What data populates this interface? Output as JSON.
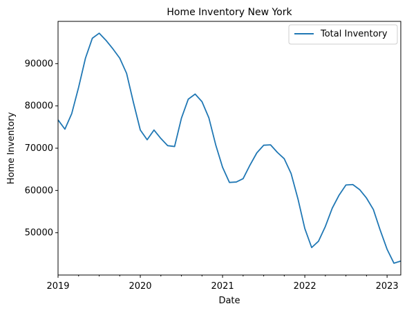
{
  "chart_data": {
    "type": "line",
    "title": "Home Inventory New York",
    "xlabel": "Date",
    "ylabel": "Home Inventory",
    "legend_position": "top-right",
    "grid": false,
    "x_tick_labels": [
      "2019",
      "2020",
      "2021",
      "2022",
      "2023"
    ],
    "y_tick_labels": [
      "50000",
      "60000",
      "70000",
      "80000",
      "90000"
    ],
    "y_ticks": [
      50000,
      60000,
      70000,
      80000,
      90000
    ],
    "ylim": [
      40000,
      100000
    ],
    "xlim": [
      "2019-01",
      "2023-03"
    ],
    "series": [
      {
        "name": "Total Inventory",
        "color": "#1f77b4",
        "x": [
          "2019-01",
          "2019-02",
          "2019-03",
          "2019-04",
          "2019-05",
          "2019-06",
          "2019-07",
          "2019-08",
          "2019-09",
          "2019-10",
          "2019-11",
          "2019-12",
          "2020-01",
          "2020-02",
          "2020-03",
          "2020-04",
          "2020-05",
          "2020-06",
          "2020-07",
          "2020-08",
          "2020-09",
          "2020-10",
          "2020-11",
          "2020-12",
          "2021-01",
          "2021-02",
          "2021-03",
          "2021-04",
          "2021-05",
          "2021-06",
          "2021-07",
          "2021-08",
          "2021-09",
          "2021-10",
          "2021-11",
          "2021-12",
          "2022-01",
          "2022-02",
          "2022-03",
          "2022-04",
          "2022-05",
          "2022-06",
          "2022-07",
          "2022-08",
          "2022-09",
          "2022-10",
          "2022-11",
          "2022-12",
          "2023-01",
          "2023-02",
          "2023-03"
        ],
        "values": [
          76700,
          74500,
          78200,
          84400,
          91300,
          96000,
          97200,
          95500,
          93500,
          91300,
          87700,
          80800,
          74300,
          72000,
          74300,
          72300,
          70600,
          70400,
          77100,
          81600,
          82800,
          81000,
          77200,
          70800,
          65500,
          61900,
          62000,
          62800,
          66000,
          68900,
          70700,
          70800,
          69000,
          67500,
          64000,
          58000,
          51000,
          46500,
          48000,
          51500,
          55800,
          58900,
          61300,
          61400,
          60200,
          58200,
          55500,
          50600,
          46100,
          42800,
          43300
        ]
      }
    ]
  }
}
